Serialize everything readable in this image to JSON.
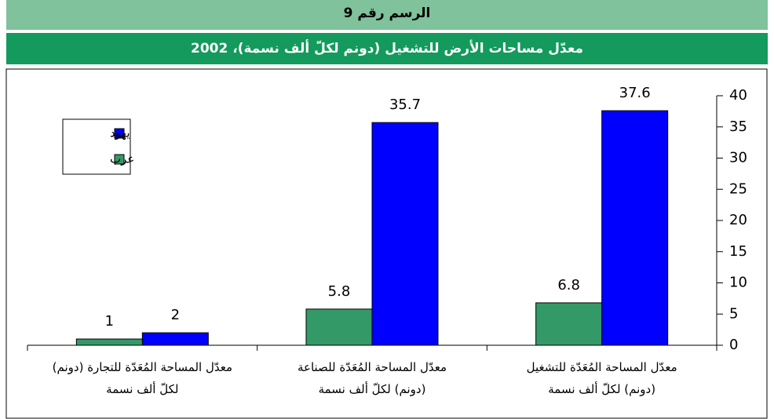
{
  "chart_data": {
    "type": "bar",
    "figure_label": "الرسم رقم 9",
    "title": "معدّل مساحات الأرض للتشغيل (دونم لكلّ ألف نسمة)، 2002",
    "categories": [
      "معدّل المساحة المُعَدّة للتشغيل (دونم) لكلّ ألف نسمة",
      "معدّل المساحة المُعَدّة للصناعة (دونم) لكلّ ألف نسمة",
      "معدّل المساحة المُعَدّة للتجارة (دونم) لكلّ ألف نسمة"
    ],
    "series": [
      {
        "name": "يهود",
        "color": "#0000ff",
        "values": [
          37.6,
          35.7,
          2
        ]
      },
      {
        "name": "عرب",
        "color": "#339966",
        "values": [
          6.8,
          5.8,
          1
        ]
      }
    ],
    "ylim": [
      0,
      40
    ],
    "yticks": [
      0,
      5,
      10,
      15,
      20,
      25,
      30,
      35,
      40
    ],
    "grid": false,
    "legend": "upper left"
  }
}
